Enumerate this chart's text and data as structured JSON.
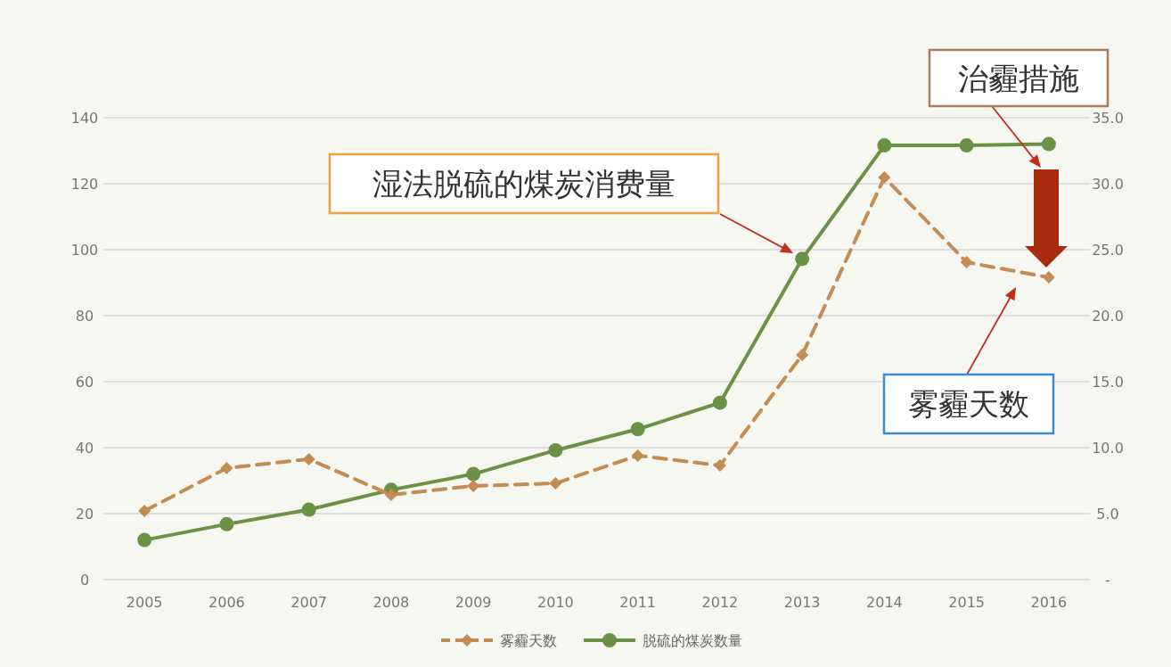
{
  "chart_data": {
    "type": "line",
    "categories": [
      "2005",
      "2006",
      "2007",
      "2008",
      "2009",
      "2010",
      "2011",
      "2012",
      "2013",
      "2014",
      "2015",
      "2016"
    ],
    "series": [
      {
        "name": "雾霾天数",
        "color": "#c48b52",
        "line_style": "dashed",
        "marker": "diamond",
        "values": [
          20.8,
          33.8,
          36.5,
          25.7,
          28.4,
          29.2,
          37.6,
          34.6,
          68.1,
          121.9,
          96.2,
          91.6
        ]
      },
      {
        "name": "脱硫的煤炭数量",
        "color": "#6b9146",
        "line_style": "solid",
        "marker": "circle",
        "axis": "y2",
        "values": [
          3.0,
          4.2,
          5.3,
          6.8,
          8.0,
          9.8,
          11.4,
          13.4,
          24.3,
          32.9,
          32.9,
          33.0
        ]
      }
    ],
    "ylim": [
      0,
      140
    ],
    "yticks": [
      0,
      20,
      40,
      60,
      80,
      100,
      120,
      140
    ],
    "y2lim": [
      0,
      35
    ],
    "y2ticks": [
      {
        "value": 0,
        "label": "-"
      },
      {
        "value": 5,
        "label": "5.0"
      },
      {
        "value": 10,
        "label": "10.0"
      },
      {
        "value": 15,
        "label": "15.0"
      },
      {
        "value": 20,
        "label": "20.0"
      },
      {
        "value": 25,
        "label": "25.0"
      },
      {
        "value": 30,
        "label": "30.0"
      },
      {
        "value": 35,
        "label": "35.0"
      }
    ],
    "grid": "y",
    "legend": "bottom",
    "annotations": [
      "湿法脱硫的煤炭消费量",
      "治霾措施",
      "雾霾天数"
    ]
  }
}
